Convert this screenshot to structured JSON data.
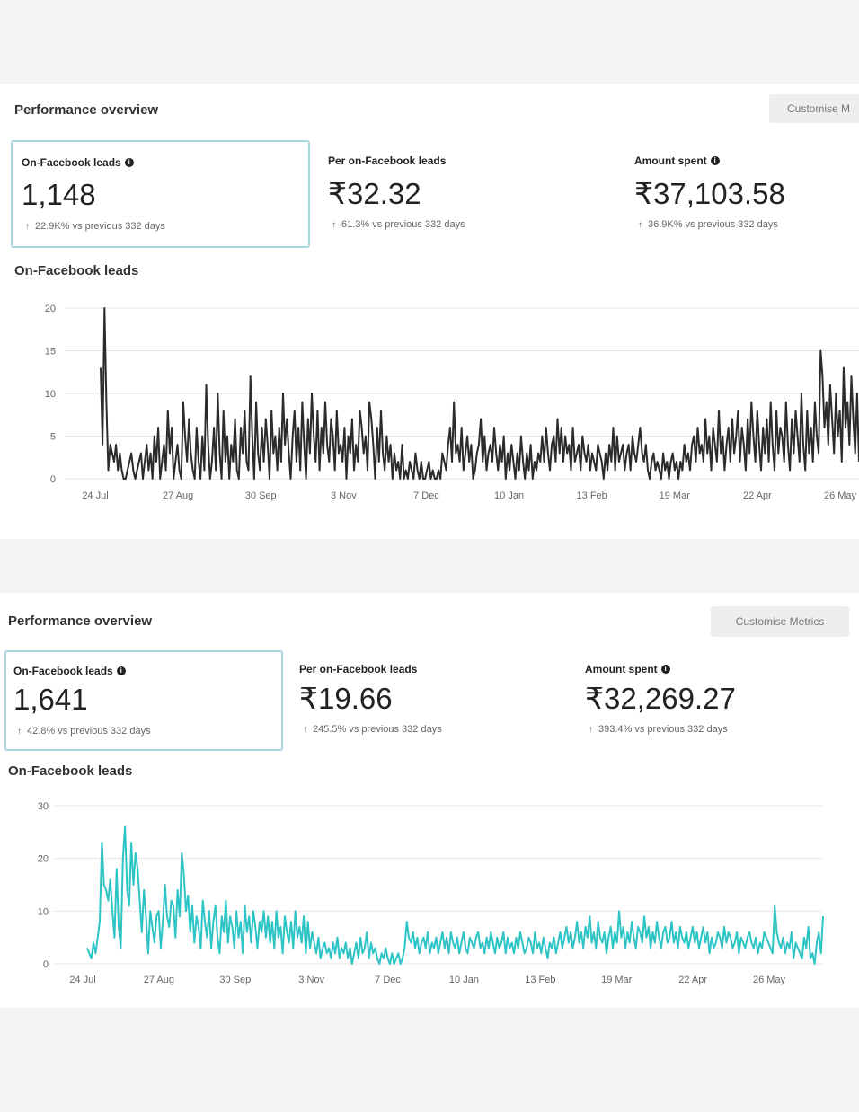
{
  "panels": [
    {
      "title": "Performance overview",
      "customise_label": "Customise M",
      "metrics": [
        {
          "label": "On-Facebook leads",
          "has_info": true,
          "value": "1,148",
          "change": "22.9K% vs previous 332 days"
        },
        {
          "label": "Per on-Facebook leads",
          "has_info": false,
          "value": "₹32.32",
          "change": "61.3% vs previous 332 days"
        },
        {
          "label": "Amount spent",
          "has_info": true,
          "value": "₹37,103.58",
          "change": "36.9K% vs previous 332 days"
        }
      ],
      "chart_title": "On-Facebook leads"
    },
    {
      "title": "Performance overview",
      "customise_label": "Customise Metrics",
      "metrics": [
        {
          "label": "On-Facebook leads",
          "has_info": true,
          "value": "1,641",
          "change": "42.8% vs previous 332 days"
        },
        {
          "label": "Per on-Facebook leads",
          "has_info": false,
          "value": "₹19.66",
          "change": "245.5% vs previous 332 days"
        },
        {
          "label": "Amount spent",
          "has_info": true,
          "value": "₹32,269.27",
          "change": "393.4% vs previous 332 days"
        }
      ],
      "chart_title": "On-Facebook leads"
    }
  ],
  "colors": {
    "series1": "#2b2b2b",
    "series2": "#2ec4c6",
    "selected_border": "#a9d8de"
  },
  "chart_data": [
    {
      "type": "line",
      "title": "On-Facebook leads",
      "xticks": [
        "24 Jul",
        "27 Aug",
        "30 Sep",
        "3 Nov",
        "7 Dec",
        "10 Jan",
        "13 Feb",
        "19 Mar",
        "22 Apr",
        "26 May"
      ],
      "yticks": [
        "0",
        "5",
        "10",
        "15",
        "20"
      ],
      "ylim": [
        0,
        20
      ],
      "grid": true,
      "series": [
        {
          "values": [
            13,
            4,
            20,
            9,
            1,
            4,
            3,
            2,
            4,
            1,
            3,
            1,
            0,
            0,
            1,
            2,
            3,
            1,
            0,
            1,
            2,
            3,
            0,
            2,
            4,
            1,
            3,
            0,
            5,
            2,
            6,
            0,
            2,
            4,
            1,
            8,
            3,
            6,
            0,
            2,
            4,
            1,
            0,
            9,
            5,
            2,
            7,
            3,
            1,
            0,
            6,
            2,
            0,
            5,
            1,
            11,
            4,
            0,
            2,
            6,
            1,
            10,
            3,
            0,
            8,
            2,
            5,
            0,
            4,
            2,
            7,
            1,
            0,
            6,
            3,
            8,
            2,
            1,
            12,
            5,
            0,
            9,
            3,
            1,
            6,
            2,
            7,
            4,
            0,
            8,
            3,
            5,
            1,
            6,
            2,
            10,
            4,
            7,
            3,
            0,
            5,
            8,
            2,
            6,
            1,
            9,
            4,
            0,
            7,
            3,
            10,
            5,
            2,
            8,
            1,
            6,
            3,
            9,
            4,
            2,
            7,
            5,
            1,
            8,
            3,
            4,
            2,
            6,
            0,
            5,
            3,
            7,
            1,
            4,
            2,
            8,
            6,
            3,
            5,
            1,
            9,
            7,
            4,
            0,
            6,
            2,
            8,
            3,
            1,
            5,
            2,
            4,
            0,
            3,
            1,
            2,
            0,
            4,
            0,
            1,
            0,
            2,
            1,
            0,
            3,
            1,
            0,
            2,
            0,
            0,
            1,
            2,
            0,
            1,
            0,
            0,
            1,
            0,
            3,
            2,
            1,
            4,
            6,
            2,
            9,
            3,
            4,
            2,
            6,
            1,
            3,
            5,
            2,
            4,
            0,
            1,
            3,
            4,
            7,
            2,
            5,
            1,
            3,
            4,
            2,
            6,
            3,
            1,
            4,
            2,
            5,
            0,
            3,
            1,
            4,
            2,
            0,
            3,
            1,
            5,
            2,
            0,
            3,
            1,
            4,
            0,
            2,
            1,
            3,
            2,
            5,
            2,
            6,
            3,
            1,
            4,
            5,
            2,
            7,
            3,
            6,
            2,
            5,
            3,
            4,
            1,
            6,
            2,
            3,
            4,
            1,
            5,
            3,
            2,
            4,
            1,
            3,
            2,
            1,
            4,
            3,
            2,
            0,
            3,
            1,
            4,
            2,
            6,
            1,
            5,
            2,
            3,
            4,
            1,
            3,
            4,
            1,
            5,
            3,
            2,
            4,
            6,
            3,
            2,
            4,
            1,
            0,
            2,
            3,
            1,
            2,
            1,
            0,
            3,
            1,
            2,
            0,
            2,
            3,
            1,
            2,
            0,
            2,
            1,
            4,
            2,
            3,
            1,
            4,
            5,
            2,
            6,
            3,
            4,
            2,
            7,
            3,
            5,
            1,
            6,
            4,
            2,
            8,
            3,
            5,
            1,
            4,
            6,
            2,
            7,
            3,
            5,
            8,
            2,
            6,
            4,
            1,
            7,
            3,
            9,
            5,
            2,
            8,
            4,
            1,
            6,
            3,
            7,
            2,
            9,
            4,
            1,
            8,
            3,
            6,
            5,
            2,
            9,
            4,
            1,
            7,
            3,
            8,
            5,
            2,
            10,
            4,
            1,
            8,
            3,
            6,
            2,
            9,
            5,
            3,
            15,
            12,
            6,
            9,
            4,
            11,
            7,
            3,
            10,
            5,
            8,
            2,
            13,
            6,
            9,
            4,
            12,
            7,
            3,
            10,
            2
          ]
        }
      ]
    },
    {
      "type": "line",
      "title": "On-Facebook leads",
      "xticks": [
        "24 Jul",
        "27 Aug",
        "30 Sep",
        "3 Nov",
        "7 Dec",
        "10 Jan",
        "13 Feb",
        "19 Mar",
        "22 Apr",
        "26 May"
      ],
      "yticks": [
        "0",
        "10",
        "20",
        "30"
      ],
      "ylim": [
        0,
        30
      ],
      "grid": true,
      "series": [
        {
          "values": [
            3,
            2,
            1,
            4,
            2,
            5,
            8,
            23,
            15,
            14,
            12,
            16,
            10,
            5,
            18,
            7,
            3,
            20,
            26,
            14,
            11,
            23,
            15,
            21,
            18,
            12,
            6,
            14,
            9,
            2,
            10,
            7,
            4,
            9,
            10,
            3,
            8,
            15,
            9,
            7,
            12,
            11,
            5,
            14,
            9,
            21,
            17,
            10,
            13,
            6,
            11,
            4,
            9,
            7,
            3,
            12,
            8,
            5,
            10,
            3,
            8,
            11,
            5,
            2,
            9,
            6,
            12,
            4,
            9,
            7,
            3,
            10,
            5,
            8,
            2,
            11,
            6,
            9,
            4,
            10,
            7,
            3,
            8,
            6,
            10,
            5,
            9,
            4,
            8,
            3,
            10,
            5,
            7,
            2,
            9,
            6,
            4,
            8,
            3,
            10,
            5,
            7,
            4,
            9,
            2,
            8,
            3,
            6,
            4,
            2,
            5,
            1,
            3,
            4,
            2,
            3,
            1,
            4,
            2,
            5,
            1,
            3,
            2,
            4,
            1,
            3,
            0,
            2,
            4,
            1,
            5,
            2,
            3,
            6,
            1,
            4,
            2,
            3,
            1,
            0,
            2,
            1,
            3,
            1,
            0,
            2,
            0,
            1,
            2,
            0,
            1,
            3,
            8,
            5,
            4,
            6,
            3,
            5,
            2,
            4,
            5,
            3,
            6,
            2,
            4,
            3,
            5,
            2,
            4,
            6,
            3,
            5,
            2,
            6,
            4,
            3,
            5,
            2,
            4,
            6,
            3,
            2,
            5,
            4,
            3,
            5,
            6,
            3,
            4,
            2,
            5,
            3,
            6,
            4,
            2,
            5,
            3,
            4,
            6,
            2,
            5,
            3,
            4,
            2,
            5,
            3,
            6,
            4,
            2,
            3,
            5,
            4,
            2,
            6,
            3,
            4,
            2,
            5,
            3,
            1,
            4,
            3,
            5,
            2,
            4,
            6,
            3,
            5,
            7,
            4,
            6,
            3,
            5,
            8,
            4,
            6,
            3,
            7,
            5,
            9,
            4,
            6,
            3,
            8,
            5,
            4,
            6,
            2,
            5,
            7,
            3,
            6,
            4,
            10,
            5,
            7,
            3,
            6,
            4,
            8,
            5,
            3,
            7,
            6,
            4,
            9,
            5,
            7,
            3,
            6,
            4,
            8,
            5,
            3,
            6,
            7,
            4,
            5,
            8,
            4,
            6,
            3,
            7,
            5,
            4,
            6,
            3,
            5,
            7,
            4,
            6,
            3,
            5,
            7,
            4,
            6,
            2,
            5,
            3,
            4,
            6,
            5,
            3,
            7,
            4,
            6,
            5,
            3,
            4,
            6,
            2,
            5,
            4,
            3,
            5,
            6,
            4,
            3,
            5,
            2,
            4,
            3,
            6,
            5,
            4,
            3,
            2,
            11,
            6,
            4,
            3,
            5,
            2,
            4,
            3,
            6,
            1,
            4,
            3,
            2,
            1,
            5,
            3,
            7,
            1,
            2,
            0,
            4,
            6,
            2,
            9
          ]
        }
      ]
    }
  ]
}
